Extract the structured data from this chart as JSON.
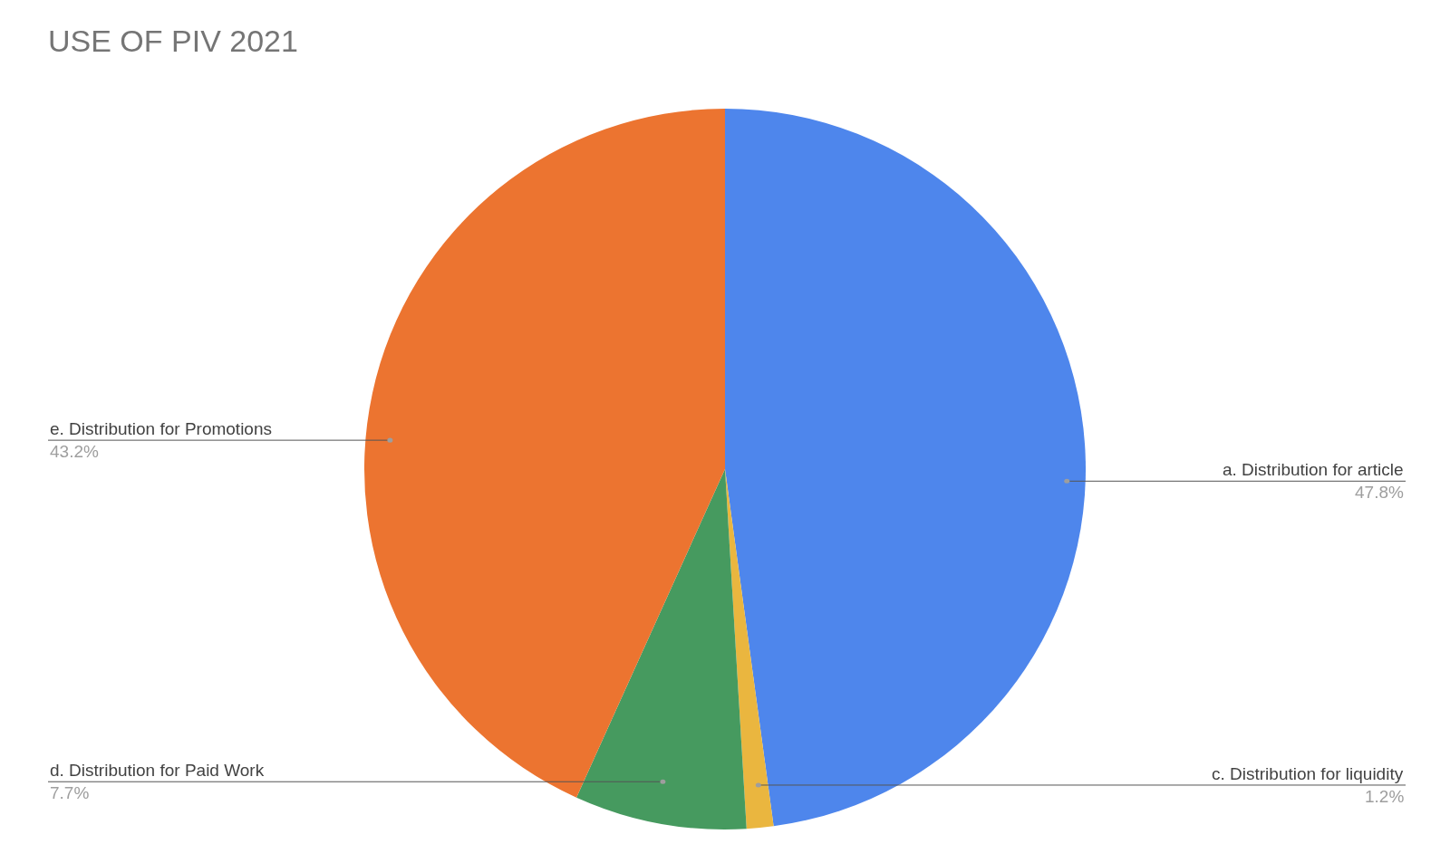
{
  "chart_data": {
    "type": "pie",
    "title": "USE OF PIV 2021",
    "categories": [
      "a. Distribution for article",
      "c. Distribution for liquidity",
      "d. Distribution for Paid Work",
      "e. Distribution for Promotions"
    ],
    "values": [
      47.8,
      1.2,
      7.7,
      43.2
    ],
    "colors": [
      "#4e86ec",
      "#eab63f",
      "#469a5f",
      "#ec7430"
    ],
    "value_labels": [
      "47.8%",
      "1.2%",
      "7.7%",
      "43.2%"
    ],
    "legend": false
  }
}
